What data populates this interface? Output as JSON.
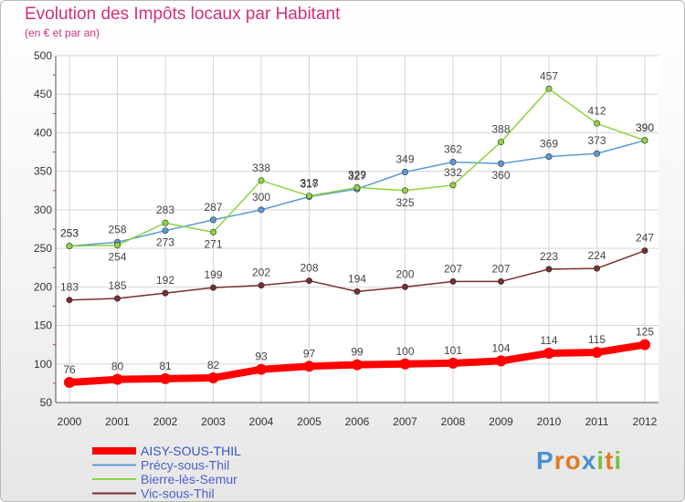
{
  "title": "Evolution des Impôts locaux par Habitant",
  "subtitle": "(en € et par an)",
  "logo": {
    "text": "Proxiti",
    "letters": [
      {
        "ch": "P",
        "color": "#4a8fd6"
      },
      {
        "ch": "r",
        "color": "#e07b24"
      },
      {
        "ch": "o",
        "color": "#e07b24"
      },
      {
        "ch": "x",
        "color": "#4a8fd6"
      },
      {
        "ch": "i",
        "color": "#7ac143"
      },
      {
        "ch": "t",
        "color": "#e07b24"
      },
      {
        "ch": "i",
        "color": "#7ac143"
      }
    ]
  },
  "chart_data": {
    "type": "line",
    "x": [
      "2000",
      "2001",
      "2002",
      "2003",
      "2004",
      "2005",
      "2006",
      "2007",
      "2008",
      "2009",
      "2010",
      "2011",
      "2012"
    ],
    "ylim": [
      50,
      500
    ],
    "yticks": [
      "50",
      "100",
      "150",
      "200",
      "250",
      "300",
      "350",
      "400",
      "450",
      "500"
    ],
    "grid": true,
    "legend": "bottom-left",
    "series": [
      {
        "name": "AISY-SOUS-THIL",
        "color": "#ff0000",
        "values": [
          76,
          80,
          81,
          82,
          93,
          97,
          99,
          100,
          101,
          104,
          114,
          115,
          125
        ],
        "labels_below": []
      },
      {
        "name": "Précy-sous-Thil",
        "color": "#5b9bd5",
        "values": [
          253,
          258,
          273,
          287,
          300,
          317,
          327,
          349,
          362,
          360,
          369,
          373,
          390
        ],
        "labels_below": [
          2,
          9
        ]
      },
      {
        "name": "Bierre-lès-Semur",
        "color": "#8ed43f",
        "values": [
          253,
          254,
          283,
          271,
          338,
          318,
          329,
          325,
          332,
          388,
          457,
          412,
          390
        ],
        "labels_below": [
          1,
          3,
          7
        ]
      },
      {
        "name": "Vic-sous-Thil",
        "color": "#7a2e2e",
        "values": [
          183,
          185,
          192,
          199,
          202,
          208,
          194,
          200,
          207,
          207,
          223,
          224,
          247
        ],
        "labels_below": []
      }
    ]
  }
}
